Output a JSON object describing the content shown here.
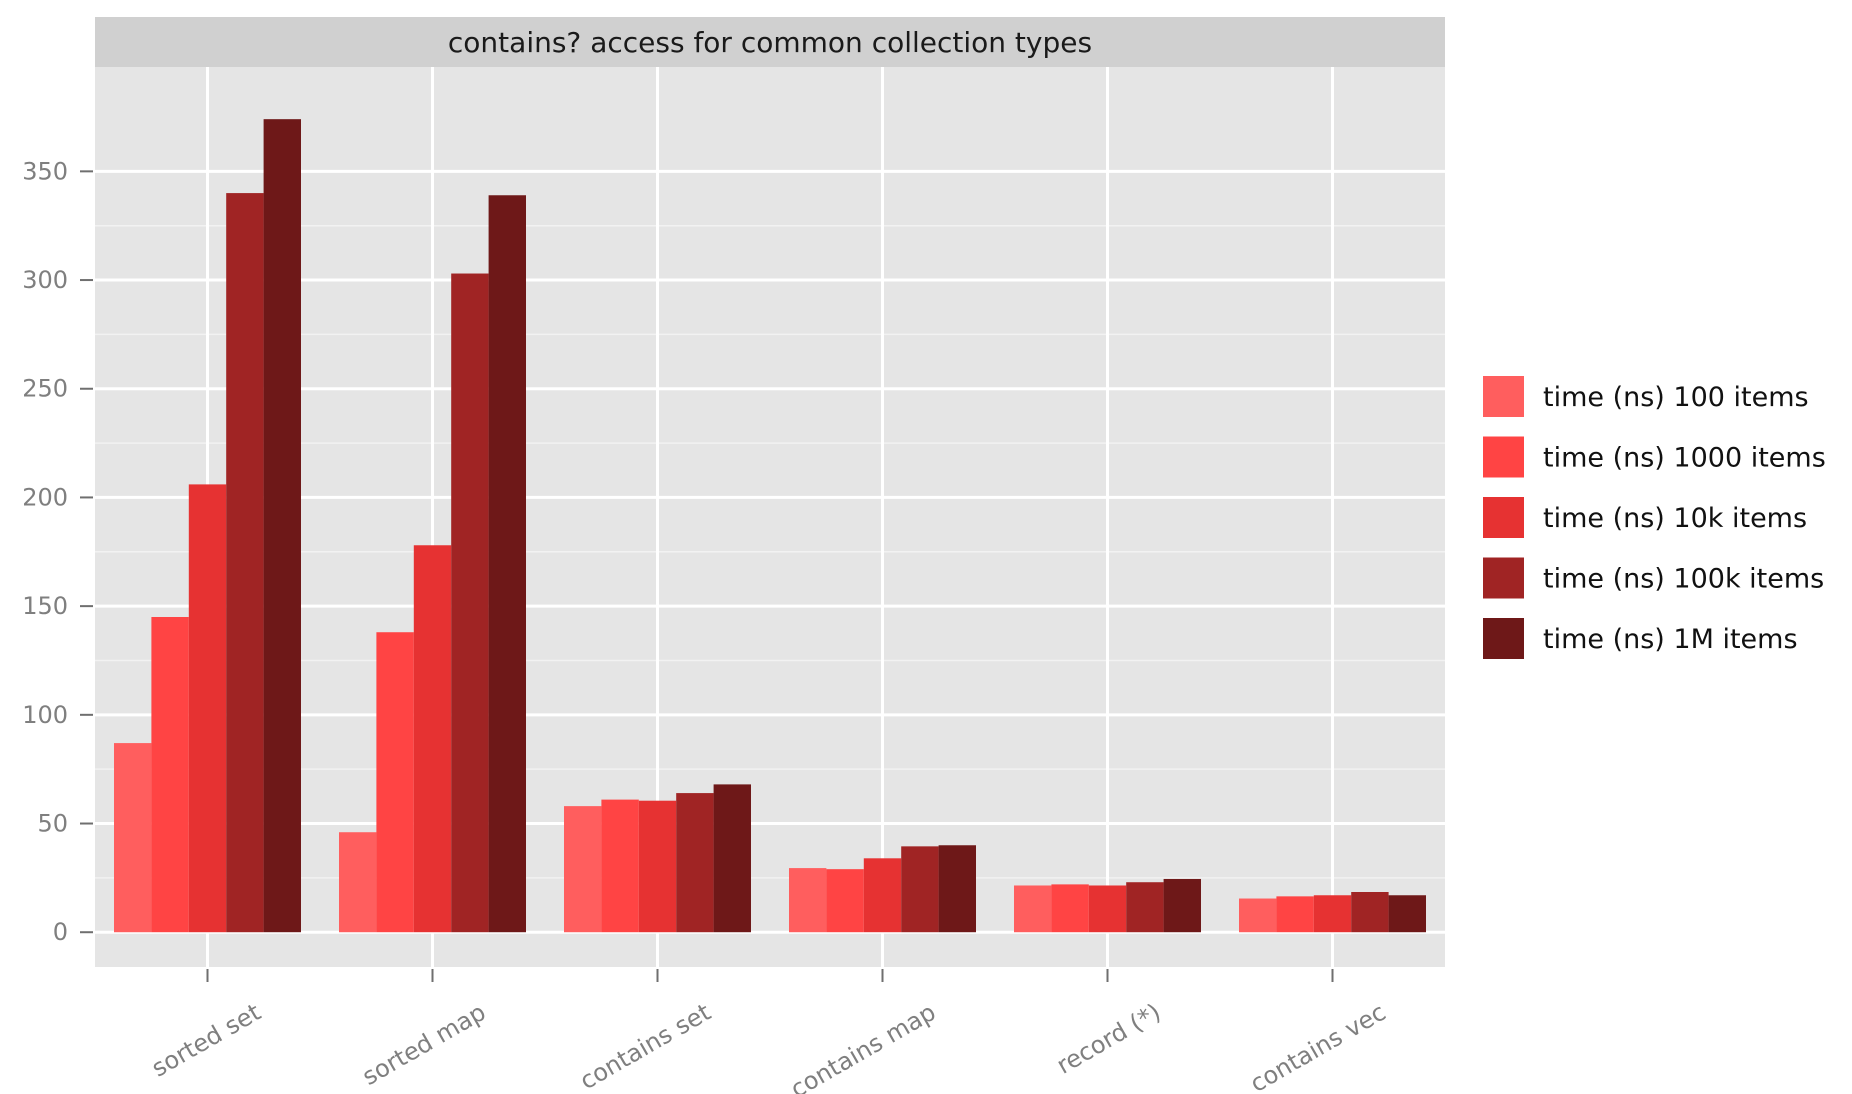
{
  "chart_data": {
    "type": "bar",
    "title": "contains? access for common collection types",
    "xlabel": "",
    "ylabel": "",
    "ylim": [
      -16,
      398
    ],
    "y_ticks": [
      0,
      50,
      100,
      150,
      200,
      250,
      300,
      350
    ],
    "categories": [
      "sorted set",
      "sorted map",
      "contains set",
      "contains map",
      "record (*)",
      "contains vec"
    ],
    "series": [
      {
        "name": "time (ns) 100 items",
        "color": "#ff5e5e",
        "values": [
          87,
          46,
          58,
          29.5,
          21.5,
          15.5
        ]
      },
      {
        "name": "time (ns) 1000 items",
        "color": "#ff4444",
        "values": [
          145,
          138,
          61,
          29,
          22,
          16.5
        ]
      },
      {
        "name": "time (ns) 10k items",
        "color": "#e63232",
        "values": [
          206,
          178,
          60.5,
          34,
          21.5,
          17
        ]
      },
      {
        "name": "time (ns) 100k items",
        "color": "#a02424",
        "values": [
          340,
          303,
          64,
          39.5,
          23,
          18.5
        ]
      },
      {
        "name": "time (ns) 1M items",
        "color": "#6e1818",
        "values": [
          374,
          339,
          68,
          40,
          24.5,
          17
        ]
      }
    ],
    "grid": true,
    "panel_background": "#e5e5e5",
    "strip_background": "#d0d0d0",
    "legend_position": "right"
  }
}
